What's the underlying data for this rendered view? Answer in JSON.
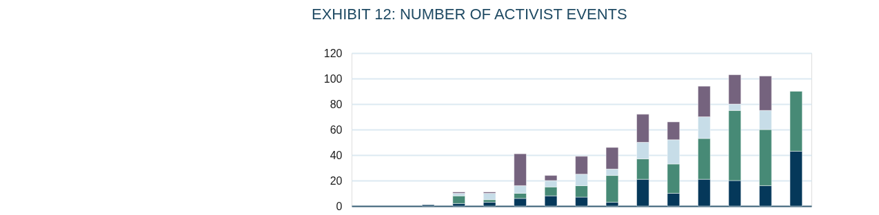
{
  "chart_data": {
    "type": "bar",
    "title": "EXHIBIT 12: NUMBER OF ACTIVIST EVENTS",
    "categories": [
      null,
      null,
      null,
      null,
      null,
      null,
      null,
      null,
      null,
      null,
      null,
      null,
      null,
      null,
      null
    ],
    "stacked": true,
    "series": [
      {
        "color": "#05385a",
        "values": [
          0,
          0,
          1,
          2,
          3,
          6,
          8,
          7,
          3,
          21,
          10,
          21,
          20,
          16,
          43
        ]
      },
      {
        "color": "#478a76",
        "values": [
          0,
          0,
          0,
          6,
          2,
          4,
          7,
          9,
          21,
          16,
          23,
          32,
          55,
          44,
          47
        ]
      },
      {
        "color": "#c7dde8",
        "values": [
          0,
          0,
          0,
          2,
          5,
          6,
          5,
          9,
          5,
          13,
          19,
          17,
          5,
          15,
          0
        ]
      },
      {
        "color": "#75637e",
        "values": [
          0,
          0,
          0,
          1,
          1,
          25,
          4,
          14,
          17,
          22,
          14,
          24,
          23,
          27,
          0
        ]
      }
    ],
    "ylim": [
      0,
      120
    ],
    "yticks": [
      0,
      20,
      40,
      60,
      80,
      100,
      120
    ],
    "grid": "y",
    "tick_labels": "y"
  }
}
